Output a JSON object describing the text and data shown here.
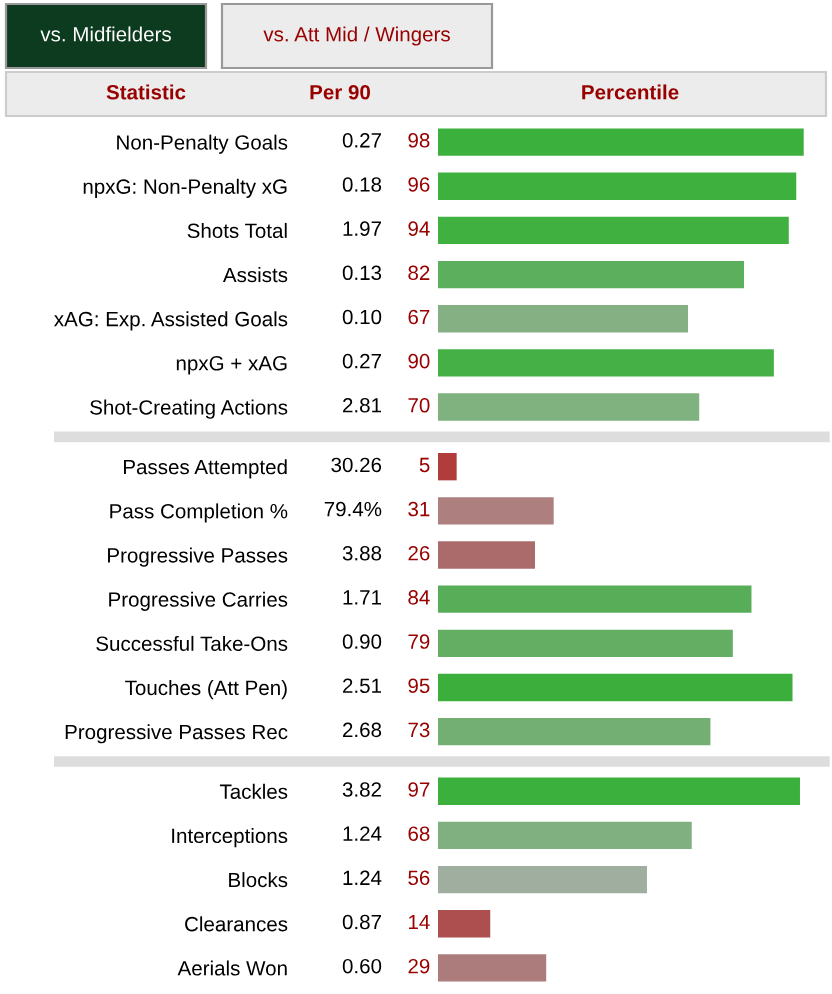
{
  "chart_data": {
    "type": "bar",
    "orientation": "horizontal",
    "xlabel": "Percentile",
    "ylabel": "Statistic",
    "categories": [
      "Non-Penalty Goals",
      "npxG: Non-Penalty xG",
      "Shots Total",
      "Assists",
      "xAG: Exp. Assisted Goals",
      "npxG + xAG",
      "Shot-Creating Actions",
      null,
      "Passes Attempted",
      "Pass Completion %",
      "Progressive Passes",
      "Progressive Carries",
      "Successful Take-Ons",
      "Touches (Att Pen)",
      "Progressive Passes Rec",
      null,
      "Tackles",
      "Interceptions",
      "Blocks",
      "Clearances",
      "Aerials Won"
    ],
    "values": [
      98,
      96,
      94,
      82,
      67,
      90,
      70,
      null,
      5,
      31,
      26,
      84,
      79,
      95,
      73,
      null,
      97,
      68,
      56,
      14,
      29
    ],
    "colors": [
      "#3cb03c",
      "#3eb03e",
      "#40b040",
      "#5caf5c",
      "#84b084",
      "#45b045",
      "#7fb27f",
      null,
      "#b03c3c",
      "#ad7f7f",
      "#ac6b6b",
      "#58ae58",
      "#64ae64",
      "#3cae3c",
      "#73ae73",
      null,
      "#3cb03c",
      "#80b080",
      "#a0ae9f",
      "#ad4f4f",
      "#ac7c7c"
    ],
    "data_labels": true,
    "tick_labels": "y",
    "annotations": [
      "vs. Midfielders",
      "vs. Att Mid / Wingers",
      "Per 90",
      "0.27",
      "0.18",
      "1.97",
      "0.13",
      "0.10",
      "0.27",
      "2.81",
      "30.26",
      "79.4%",
      "3.88",
      "1.71",
      "0.90",
      "2.51",
      "2.68",
      "3.82",
      "1.24",
      "1.24",
      "0.87",
      "0.60"
    ]
  }
}
